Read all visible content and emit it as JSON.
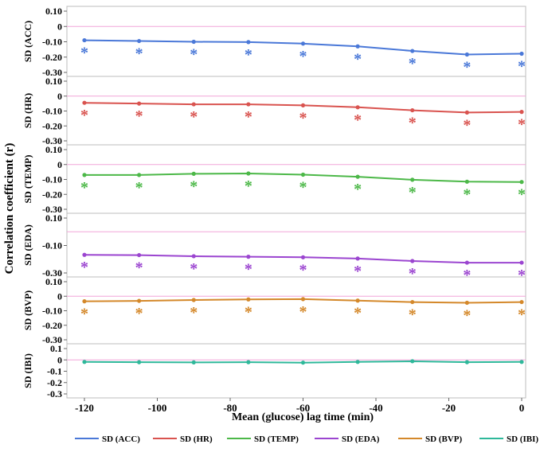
{
  "chart_data": {
    "type": "line",
    "ylabel": "Correlation coefficient (r)",
    "xlabel": "Mean (glucose) lag time (min)",
    "x": [
      -120,
      -105,
      -90,
      -75,
      -60,
      -45,
      -30,
      -15,
      0
    ],
    "xticks": [
      "-120",
      "-100",
      "-80",
      "-60",
      "-40",
      "-20",
      "0"
    ],
    "xtick_values": [
      -120,
      -100,
      -80,
      -60,
      -40,
      -20,
      0
    ],
    "xlim": [
      -120,
      0
    ],
    "significance_marker": "*",
    "panels": [
      {
        "name": "SD (ACC)",
        "color": "#4a78d8",
        "ylim": [
          -0.3,
          0.1
        ],
        "yticks": [
          "0.10",
          "0",
          "-0.10",
          "-0.20",
          "-0.30"
        ],
        "ytick_values": [
          0.1,
          0,
          -0.1,
          -0.2,
          -0.3
        ],
        "values": [
          -0.09,
          -0.095,
          -0.1,
          -0.102,
          -0.112,
          -0.13,
          -0.16,
          -0.183,
          -0.178
        ],
        "significant": [
          true,
          true,
          true,
          true,
          true,
          true,
          true,
          true,
          true
        ]
      },
      {
        "name": "SD (HR)",
        "color": "#d9534f",
        "ylim": [
          -0.3,
          0.1
        ],
        "yticks": [
          "0.10",
          "0",
          "-0.10",
          "-0.20",
          "-0.30"
        ],
        "ytick_values": [
          0.1,
          0,
          -0.1,
          -0.2,
          -0.3
        ],
        "values": [
          -0.045,
          -0.05,
          -0.055,
          -0.055,
          -0.062,
          -0.075,
          -0.095,
          -0.11,
          -0.106
        ],
        "significant": [
          true,
          true,
          true,
          true,
          true,
          true,
          true,
          true,
          true
        ]
      },
      {
        "name": "SD (TEMP)",
        "color": "#4cb848",
        "ylim": [
          -0.3,
          0.1
        ],
        "yticks": [
          "0.10",
          "0",
          "-0.10",
          "-0.20",
          "-0.30"
        ],
        "ytick_values": [
          0.1,
          0,
          -0.1,
          -0.2,
          -0.3
        ],
        "values": [
          -0.07,
          -0.07,
          -0.062,
          -0.06,
          -0.068,
          -0.082,
          -0.102,
          -0.115,
          -0.117
        ],
        "significant": [
          true,
          true,
          true,
          true,
          true,
          true,
          true,
          true,
          true
        ]
      },
      {
        "name": "SD (EDA)",
        "color": "#9b45d0",
        "ylim": [
          -0.3,
          0.1
        ],
        "yticks": [
          "0.10",
          "-0.10",
          "-0.30"
        ],
        "ytick_values": [
          0.1,
          -0.1,
          -0.3
        ],
        "values": [
          -0.168,
          -0.17,
          -0.178,
          -0.182,
          -0.186,
          -0.195,
          -0.213,
          -0.225,
          -0.225
        ],
        "significant": [
          true,
          true,
          true,
          true,
          true,
          true,
          true,
          true,
          true
        ]
      },
      {
        "name": "SD (BVP)",
        "color": "#d4882a",
        "ylim": [
          -0.3,
          0.1
        ],
        "yticks": [
          "0.10",
          "0",
          "-0.10",
          "-0.20",
          "-0.30"
        ],
        "ytick_values": [
          0.1,
          0,
          -0.1,
          -0.2,
          -0.3
        ],
        "values": [
          -0.035,
          -0.032,
          -0.026,
          -0.022,
          -0.02,
          -0.03,
          -0.04,
          -0.045,
          -0.04
        ],
        "significant": [
          true,
          true,
          true,
          true,
          true,
          true,
          true,
          true,
          true
        ]
      },
      {
        "name": "SD (IBI)",
        "color": "#2eb89a",
        "ylim": [
          -0.3,
          0.1
        ],
        "yticks": [
          "0.1",
          "0",
          "-0.1",
          "-0.2",
          "-0.3"
        ],
        "ytick_values": [
          0.1,
          0,
          -0.1,
          -0.2,
          -0.3
        ],
        "values": [
          -0.018,
          -0.02,
          -0.022,
          -0.02,
          -0.024,
          -0.018,
          -0.012,
          -0.02,
          -0.018
        ],
        "significant": [
          false,
          false,
          false,
          false,
          false,
          false,
          false,
          false,
          false
        ]
      }
    ],
    "legend": {
      "position": "bottom",
      "entries": [
        "SD (ACC)",
        "SD (HR)",
        "SD (TEMP)",
        "SD (EDA)",
        "SD (BVP)",
        "SD (IBI)"
      ]
    }
  }
}
